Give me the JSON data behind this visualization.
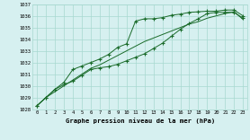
{
  "title": "Graphe pression niveau de la mer (hPa)",
  "bg_color": "#d6f0f0",
  "grid_color": "#a8d8d0",
  "line_color": "#1a6b2a",
  "x_labels": [
    "0",
    "1",
    "2",
    "3",
    "4",
    "5",
    "6",
    "7",
    "8",
    "9",
    "10",
    "11",
    "12",
    "13",
    "14",
    "15",
    "16",
    "17",
    "18",
    "19",
    "20",
    "21",
    "22",
    "23"
  ],
  "ylim": [
    1028,
    1037
  ],
  "yticks": [
    1028,
    1029,
    1030,
    1031,
    1032,
    1033,
    1034,
    1035,
    1036,
    1037
  ],
  "series_straight": [
    1028.3,
    1029.0,
    1029.5,
    1030.0,
    1030.5,
    1031.0,
    1031.5,
    1031.8,
    1032.2,
    1032.6,
    1033.0,
    1033.4,
    1033.8,
    1034.1,
    1034.4,
    1034.7,
    1035.0,
    1035.3,
    1035.5,
    1035.8,
    1036.0,
    1036.2,
    1036.35,
    1035.7
  ],
  "series_upper": [
    1028.3,
    1029.0,
    1029.7,
    1030.3,
    1031.4,
    1031.7,
    1032.0,
    1032.3,
    1032.7,
    1033.3,
    1033.6,
    1035.55,
    1035.75,
    1035.75,
    1035.85,
    1036.05,
    1036.15,
    1036.3,
    1036.35,
    1036.4,
    1036.4,
    1036.5,
    1036.5,
    1036.0
  ],
  "series_lower": [
    1028.3,
    1029.0,
    1029.7,
    1030.1,
    1030.4,
    1030.9,
    1031.4,
    1031.55,
    1031.65,
    1031.85,
    1032.15,
    1032.45,
    1032.75,
    1033.2,
    1033.65,
    1034.25,
    1034.85,
    1035.35,
    1035.75,
    1036.2,
    1036.3,
    1036.3,
    1036.3,
    1035.8
  ]
}
